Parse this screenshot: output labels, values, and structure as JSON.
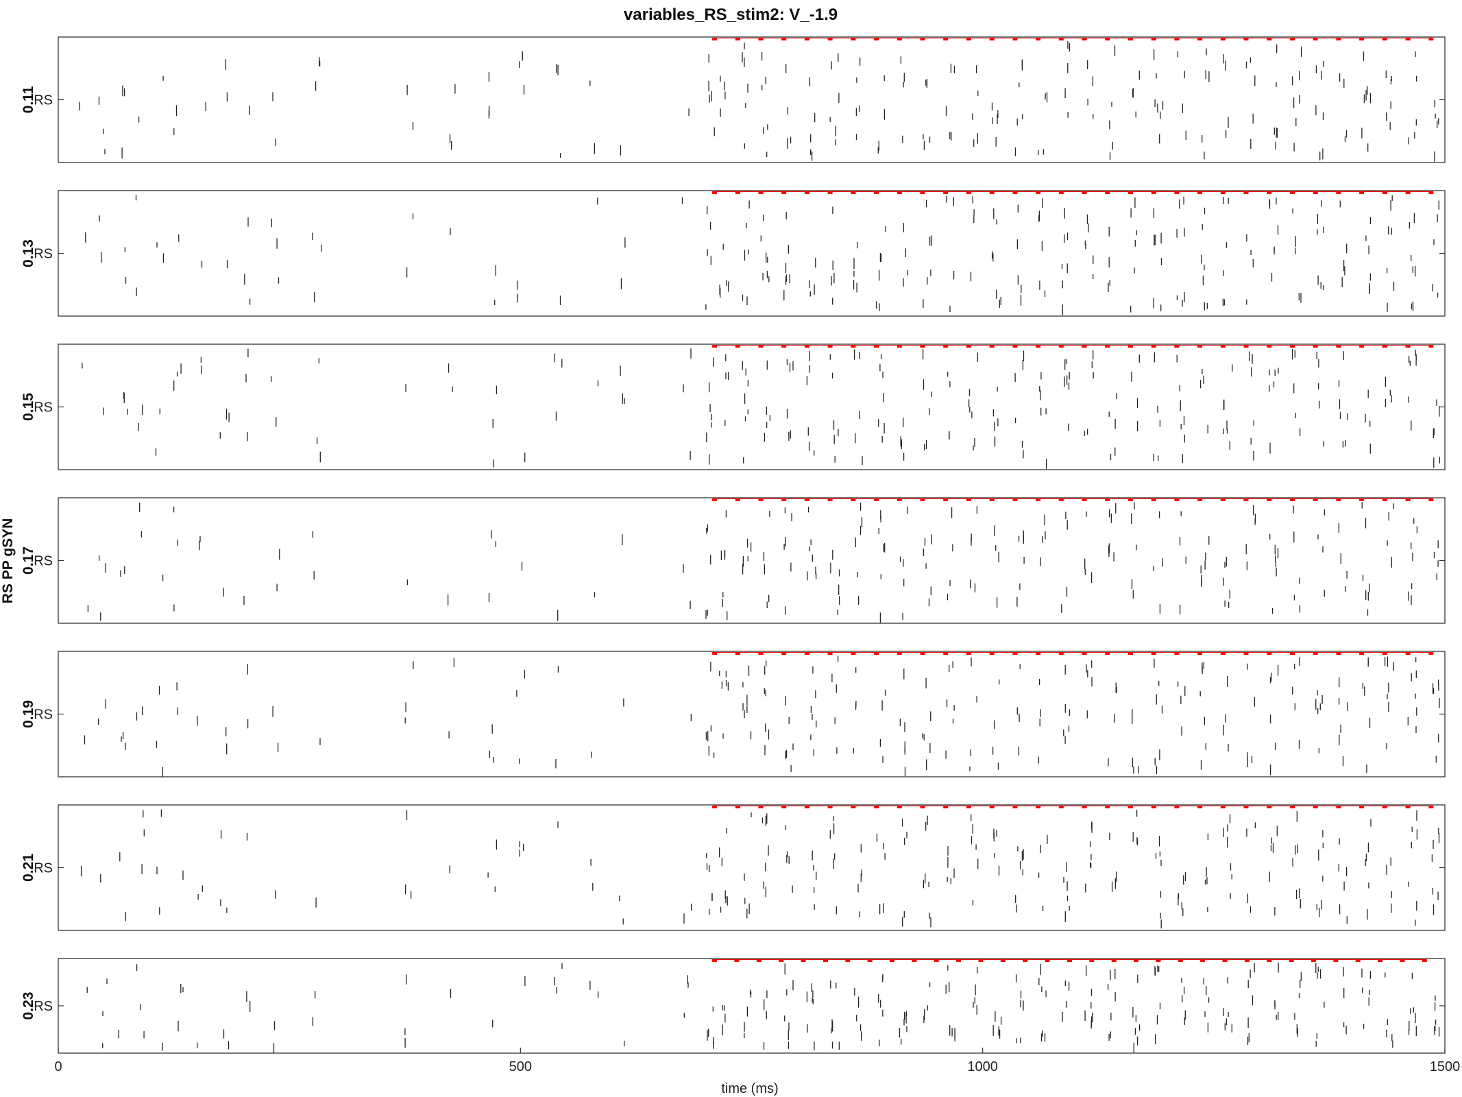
{
  "chart_data": {
    "type": "scatter",
    "title": "variables_RS_stim2: V_-1.9",
    "xlabel": "time (ms)",
    "ylabel": "RS PP gSYN",
    "xlim": [
      0,
      1500
    ],
    "x_ticks": [
      "0",
      "500",
      "1000",
      "1500"
    ],
    "panel_y_label": "RS",
    "panels": [
      {
        "label": "0.11"
      },
      {
        "label": "0.13"
      },
      {
        "label": "0.15"
      },
      {
        "label": "0.17"
      },
      {
        "label": "0.19"
      },
      {
        "label": "0.21"
      },
      {
        "label": "0.23"
      }
    ],
    "pulse_color": "#ff0000",
    "spike_color": "#222222",
    "pulse_times": [
      710,
      735,
      760,
      785,
      810,
      835,
      860,
      885,
      910,
      935,
      960,
      985,
      1010,
      1035,
      1060,
      1085,
      1110,
      1135,
      1160,
      1185,
      1210,
      1235,
      1260,
      1285,
      1310,
      1335,
      1360,
      1385,
      1410,
      1435,
      1460,
      1485
    ],
    "last_panel_pulse_times": [
      710,
      734,
      758,
      782,
      806,
      830,
      854,
      878,
      902,
      926,
      950,
      974,
      998,
      1022,
      1046,
      1070,
      1094,
      1118,
      1142,
      1166,
      1190,
      1214,
      1238,
      1262,
      1286,
      1310,
      1334,
      1358,
      1382,
      1406,
      1430,
      1454,
      1478
    ],
    "spike_columns": [
      28,
      48,
      70,
      88,
      110,
      130,
      155,
      180,
      205,
      235,
      280,
      380,
      425,
      470,
      500,
      540,
      580,
      610,
      680,
      705,
      720,
      745,
      765,
      790,
      815,
      840,
      865,
      890,
      915,
      940,
      965,
      990,
      1015,
      1040,
      1065,
      1090,
      1115,
      1140,
      1165,
      1190,
      1215,
      1240,
      1265,
      1290,
      1315,
      1340,
      1365,
      1390,
      1415,
      1440,
      1465,
      1490
    ]
  }
}
